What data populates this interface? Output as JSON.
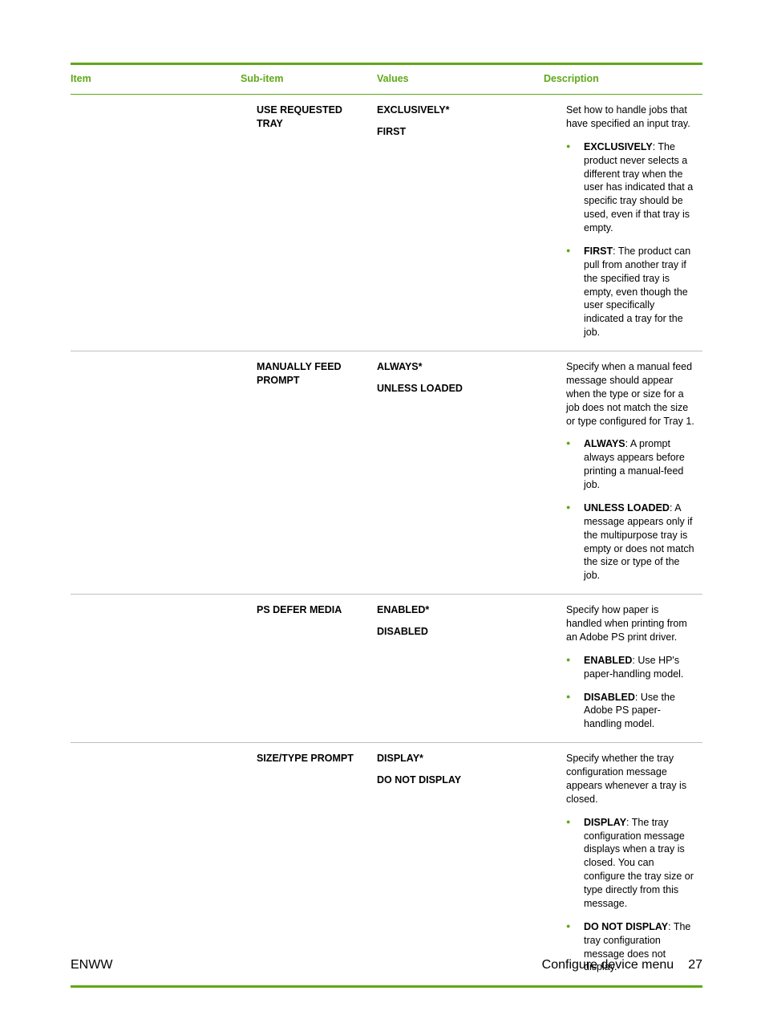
{
  "colors": {
    "accent": "#5fa818",
    "border": "#bfbfbf",
    "text": "#000000",
    "bg": "#ffffff"
  },
  "headers": {
    "item": "Item",
    "sub": "Sub-item",
    "values": "Values",
    "desc": "Description"
  },
  "rows": [
    {
      "sub": "USE REQUESTED TRAY",
      "values": [
        "EXCLUSIVELY*",
        "FIRST"
      ],
      "intro": "Set how to handle jobs that have specified an input tray.",
      "bullets": [
        {
          "label": "EXCLUSIVELY",
          "text": ": The product never selects a different tray when the user has indicated that a specific tray should be used, even if that tray is empty."
        },
        {
          "label": "FIRST",
          "text": ": The product can pull from another tray if the specified tray is empty, even though the user specifically indicated a tray for the job."
        }
      ]
    },
    {
      "sub": "MANUALLY FEED PROMPT",
      "values": [
        "ALWAYS*",
        "UNLESS LOADED"
      ],
      "intro": "Specify when a manual feed message should appear when the type or size for a job does not match the size or type configured for Tray 1.",
      "bullets": [
        {
          "label": "ALWAYS",
          "text": ": A prompt always appears before printing a manual-feed job."
        },
        {
          "label": "UNLESS LOADED",
          "text": ": A message appears only if the multipurpose tray is empty or does not match the size or type of the job."
        }
      ]
    },
    {
      "sub": "PS DEFER MEDIA",
      "values": [
        "ENABLED*",
        "DISABLED"
      ],
      "intro": "Specify how paper is handled when printing from an Adobe PS print driver.",
      "bullets": [
        {
          "label": "ENABLED",
          "text": ": Use HP's paper-handling model."
        },
        {
          "label": "DISABLED",
          "text": ": Use the Adobe PS paper-handling model."
        }
      ]
    },
    {
      "sub": "SIZE/TYPE PROMPT",
      "values": [
        "DISPLAY*",
        "DO NOT DISPLAY"
      ],
      "intro": "Specify whether the tray configuration message appears whenever a tray is closed.",
      "bullets": [
        {
          "label": "DISPLAY",
          "text": ": The tray configuration message displays when a tray is closed. You can configure the tray size or type directly from this message."
        },
        {
          "label": "DO NOT DISPLAY",
          "text": ": The tray configuration message does not display."
        }
      ]
    }
  ],
  "footer": {
    "left": "ENWW",
    "section": "Configure device menu",
    "page": "27"
  }
}
